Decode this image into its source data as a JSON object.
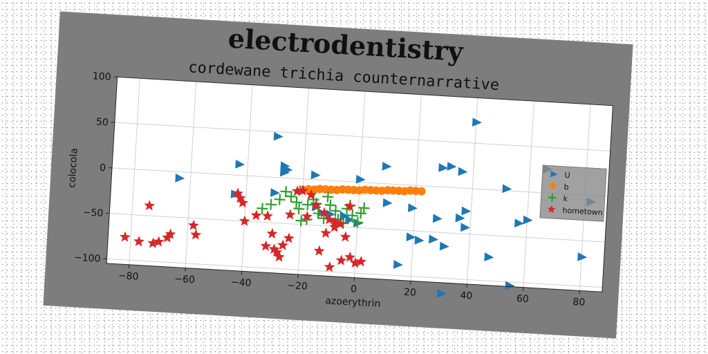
{
  "chart_data": {
    "type": "scatter",
    "title": "electrodentistry",
    "subtitle": "cordewane trichia counternarrative",
    "xlabel": "azoerythrin",
    "ylabel": "colocola",
    "xlim": [
      -88,
      88
    ],
    "ylim": [
      -105,
      100
    ],
    "xticks": [
      -80,
      -60,
      -40,
      -20,
      0,
      20,
      40,
      60,
      80
    ],
    "yticks": [
      -100,
      -50,
      0,
      50,
      100
    ],
    "grid": true,
    "legend_position": "center-right",
    "series": [
      {
        "name": "U",
        "marker": "triangle-right",
        "color": "#1f77b4",
        "points": [
          [
            40,
            73
          ],
          [
            -30,
            45
          ],
          [
            -43,
            12
          ],
          [
            -27,
            13
          ],
          [
            -27,
            6
          ],
          [
            -26,
            9
          ],
          [
            -16,
            5
          ],
          [
            0,
            3
          ],
          [
            9,
            19
          ],
          [
            29,
            21
          ],
          [
            32,
            23
          ],
          [
            36,
            18
          ],
          [
            52,
            2
          ],
          [
            66,
            26
          ],
          [
            -64,
            -7
          ],
          [
            -44,
            -21
          ],
          [
            -30,
            -17
          ],
          [
            -20,
            -12
          ],
          [
            -15,
            -30
          ],
          [
            -13,
            -36
          ],
          [
            -10,
            -37
          ],
          [
            -5,
            -38
          ],
          [
            -3,
            -42
          ],
          [
            0,
            -45
          ],
          [
            10,
            -21
          ],
          [
            19,
            -25
          ],
          [
            28,
            -35
          ],
          [
            36,
            -33
          ],
          [
            38,
            -25
          ],
          [
            38,
            -43
          ],
          [
            19,
            -57
          ],
          [
            22,
            -60
          ],
          [
            27,
            -58
          ],
          [
            31,
            -65
          ],
          [
            47,
            -74
          ],
          [
            55,
            -104
          ],
          [
            31,
            -117
          ],
          [
            15,
            -88
          ],
          [
            57,
            -35
          ],
          [
            60,
            -31
          ],
          [
            80,
            -68
          ],
          [
            82,
            -7
          ]
        ]
      },
      {
        "name": "b",
        "marker": "circle",
        "color": "#ff7f0e",
        "points": [
          [
            -20,
            -12
          ],
          [
            -18,
            -11
          ],
          [
            -16,
            -11
          ],
          [
            -14,
            -10
          ],
          [
            -12,
            -10
          ],
          [
            -10,
            -10
          ],
          [
            -8,
            -10
          ],
          [
            -6,
            -9
          ],
          [
            -4,
            -9
          ],
          [
            -2,
            -9
          ],
          [
            0,
            -9
          ],
          [
            2,
            -8
          ],
          [
            4,
            -8
          ],
          [
            6,
            -8
          ],
          [
            8,
            -8
          ],
          [
            10,
            -7
          ],
          [
            12,
            -7
          ],
          [
            14,
            -7
          ],
          [
            16,
            -7
          ],
          [
            18,
            -6
          ],
          [
            20,
            -6
          ],
          [
            22,
            -6
          ]
        ]
      },
      {
        "name": "k",
        "marker": "plus",
        "color": "#2ca02c",
        "points": [
          [
            -28,
            -24
          ],
          [
            -24,
            -20
          ],
          [
            -22,
            -26
          ],
          [
            -21,
            -33
          ],
          [
            -20,
            -46
          ],
          [
            -18,
            -44
          ],
          [
            -18,
            -28
          ],
          [
            -15,
            -26
          ],
          [
            -14,
            -37
          ],
          [
            -12,
            -42
          ],
          [
            -10,
            -27
          ],
          [
            -8,
            -33
          ],
          [
            -7,
            -42
          ],
          [
            -5,
            -46
          ],
          [
            -4,
            -30
          ],
          [
            -3,
            -26
          ],
          [
            -2,
            -37
          ],
          [
            0,
            -44
          ],
          [
            1,
            -34
          ],
          [
            2,
            -28
          ],
          [
            -34,
            -35
          ],
          [
            -31,
            -30
          ],
          [
            -16,
            -22
          ],
          [
            -26,
            -15
          ],
          [
            -11,
            -18
          ]
        ]
      },
      {
        "name": "hometown",
        "marker": "star",
        "color": "#d62728",
        "points": [
          [
            -82,
            -75
          ],
          [
            -77,
            -79
          ],
          [
            -74,
            -39
          ],
          [
            -72,
            -80
          ],
          [
            -70,
            -78
          ],
          [
            -67,
            -73
          ],
          [
            -66,
            -69
          ],
          [
            -58,
            -58
          ],
          [
            -57,
            -68
          ],
          [
            -43,
            -20
          ],
          [
            -42,
            -25
          ],
          [
            -41,
            -30
          ],
          [
            -40,
            -50
          ],
          [
            -36,
            -43
          ],
          [
            -32,
            -43
          ],
          [
            -30,
            -62
          ],
          [
            -32,
            -76
          ],
          [
            -29,
            -79
          ],
          [
            -28,
            -82
          ],
          [
            -27,
            -87
          ],
          [
            -26,
            -74
          ],
          [
            -24,
            -66
          ],
          [
            -22,
            -14
          ],
          [
            -20,
            -13
          ],
          [
            -17,
            -17
          ],
          [
            -15,
            -28
          ],
          [
            -12,
            -36
          ],
          [
            -10,
            -43
          ],
          [
            -8,
            -45
          ],
          [
            -6,
            -47
          ],
          [
            -13,
            -78
          ],
          [
            -9,
            -95
          ],
          [
            -5,
            -87
          ],
          [
            -2,
            -83
          ],
          [
            0,
            -89
          ],
          [
            2,
            -87
          ],
          [
            -3,
            -27
          ],
          [
            -8,
            -51
          ],
          [
            -4,
            -61
          ],
          [
            -11,
            -58
          ],
          [
            -18,
            -41
          ],
          [
            -24,
            -40
          ]
        ]
      }
    ]
  }
}
